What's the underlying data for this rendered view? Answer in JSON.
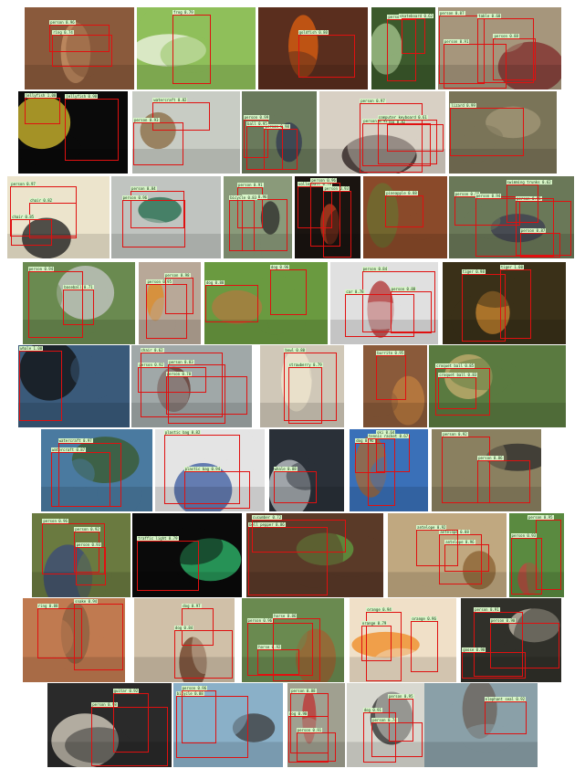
{
  "grid": {
    "rows": [
      {
        "cells": [
          {
            "bg": "#8a5a3c",
            "accent": "#c99568",
            "labels": [
              "person 0.96",
              "ring 0.74"
            ]
          },
          {
            "bg": "#8fbf5a",
            "accent": "#f2f6e8",
            "labels": [
              "frog 0.79"
            ]
          },
          {
            "bg": "#5a2e1e",
            "accent": "#e06010",
            "labels": [
              "goldfish 0.80"
            ]
          },
          {
            "bg": "#3c5a2c",
            "accent": "#a8c890",
            "labels": [
              "person 0.94",
              "skateboard 0.62"
            ]
          },
          {
            "bg": "#a6967c",
            "accent": "#7e2a2a",
            "labels": [
              "person 0.88",
              "person 0.87",
              "person 0.91",
              "table 0.68"
            ]
          }
        ]
      },
      {
        "cells": [
          {
            "bg": "#0a0a0a",
            "accent": "#d8c030",
            "labels": [
              "jellyfish 1.00",
              "jellyfish 0.98"
            ]
          },
          {
            "bg": "#c8ccc4",
            "accent": "#8a6a40",
            "labels": [
              "watercraft 0.82",
              "person 0.93"
            ]
          },
          {
            "bg": "#6a7a5c",
            "accent": "#303850",
            "labels": [
              "person 0.99",
              "person 0.98",
              "ball 0.95"
            ]
          },
          {
            "bg": "#d8d0c4",
            "accent": "#2a1c1c",
            "labels": [
              "person 0.97",
              "dog 0.82",
              "person 0.92",
              "computer keyboard 0.61"
            ]
          },
          {
            "bg": "#7a7458",
            "accent": "#a49878",
            "labels": [
              "lizard 0.99"
            ]
          }
        ]
      },
      {
        "cells": [
          {
            "bg": "#ece4cc",
            "accent": "#1c1c1c",
            "labels": [
              "person 0.97",
              "chair 0.82",
              "chair 0.85"
            ]
          },
          {
            "bg": "#c0c4c0",
            "accent": "#1e6a4a",
            "labels": [
              "person 0.84",
              "person 0.96"
            ]
          },
          {
            "bg": "#8a9a7a",
            "accent": "#2a2a2a",
            "labels": [
              "person 0.91",
              "person 0.96",
              "bicycle 0.83"
            ]
          },
          {
            "bg": "#1a1410",
            "accent": "#c04020",
            "labels": [
              "volleyball 0.79",
              "person 0.93",
              "person 0.96"
            ]
          },
          {
            "bg": "#8a4a2a",
            "accent": "#6a7030",
            "labels": [
              "pineapple 0.88"
            ]
          },
          {
            "bg": "#6a7858",
            "accent": "#3c3c50",
            "labels": [
              "person 0.89",
              "person 0.95",
              "person 0.87",
              "person 0.94",
              "swimming trunks 0.62"
            ]
          }
        ]
      },
      {
        "cells": [
          {
            "bg": "#6a8a50",
            "accent": "#c8c8c8",
            "labels": [
              "baseball 0.71",
              "person 0.94"
            ]
          },
          {
            "bg": "#b8a898",
            "accent": "#e08a20",
            "labels": [
              "person 0.95",
              "person 0.98"
            ]
          },
          {
            "bg": "#6a9a40",
            "accent": "#b07a40",
            "labels": [
              "dog 0.96",
              "dog 0.88"
            ]
          },
          {
            "bg": "#e0e0e0",
            "accent": "#b03030",
            "labels": [
              "person 0.84",
              "person 0.88",
              "car 0.78"
            ]
          },
          {
            "bg": "#3a3018",
            "accent": "#d08a30",
            "labels": [
              "tiger 1.00",
              "tiger 0.98"
            ]
          }
        ]
      },
      {
        "cells": [
          {
            "bg": "#3a5a7a",
            "accent": "#101010",
            "labels": [
              "whale 1.00"
            ]
          },
          {
            "bg": "#a0a8a8",
            "accent": "#603028",
            "labels": [
              "person 0.78",
              "person 0.92",
              "person 0.83",
              "chair 0.62"
            ]
          },
          {
            "bg": "#d0c8b8",
            "accent": "#f2e8d0",
            "labels": [
              "bowl 0.80",
              "strawberry 0.79"
            ]
          },
          {
            "bg": "#8a5a3a",
            "accent": "#c08040",
            "labels": [
              "burrito 0.95"
            ]
          },
          {
            "bg": "#5a7a40",
            "accent": "#c8b070",
            "labels": [
              "croquet ball 0.83",
              "croquet ball 0.85"
            ]
          }
        ]
      },
      {
        "cells": [
          {
            "bg": "#4a7aa0",
            "accent": "#3a5a2a",
            "labels": [
              "watercraft 0.87",
              "watercraft 0.97"
            ]
          },
          {
            "bg": "#e4e4e4",
            "accent": "#3a5aa0",
            "labels": [
              "plastic bag 0.82",
              "plastic bag 0.94"
            ]
          },
          {
            "bg": "#2a3038",
            "accent": "#c8ccd0",
            "labels": [
              "whale 0.88"
            ]
          },
          {
            "bg": "#3a70b8",
            "accent": "#a86830",
            "labels": [
              "dog 0.96",
              "ski 0.64",
              "tennis racket 0.67"
            ]
          },
          {
            "bg": "#8a8060",
            "accent": "#2a2a2a",
            "labels": [
              "person 0.92",
              "person 0.86"
            ]
          }
        ]
      },
      {
        "cells": [
          {
            "bg": "#6a7a40",
            "accent": "#3a4a7a",
            "labels": [
              "person 0.92",
              "person 0.96",
              "person 0.93"
            ]
          },
          {
            "bg": "#0a0a0a",
            "accent": "#30c070",
            "labels": [
              "traffic light 0.79"
            ]
          },
          {
            "bg": "#5a3a28",
            "accent": "#60a040",
            "labels": [
              "bell pepper 0.86",
              "cucumber 0.72"
            ]
          },
          {
            "bg": "#c0a880",
            "accent": "#8a6030",
            "labels": [
              "antelope 0.96",
              "antelope 0.88",
              "antelope 0.92"
            ]
          },
          {
            "bg": "#5a8a40",
            "accent": "#c84040",
            "labels": [
              "person 0.95",
              "person 0.93"
            ]
          }
        ]
      },
      {
        "cells": [
          {
            "bg": "#c07a50",
            "accent": "#8a6040",
            "labels": [
              "snake 0.94",
              "ring 0.88"
            ]
          },
          {
            "bg": "#d0c0a8",
            "accent": "#6a3a20",
            "labels": [
              "dog 0.97",
              "dog 0.84"
            ]
          },
          {
            "bg": "#6a8a50",
            "accent": "#a06030",
            "labels": [
              "person 0.96",
              "horse 0.92",
              "horse 0.86"
            ]
          },
          {
            "bg": "#f0e0c8",
            "accent": "#f08a20",
            "labels": [
              "orange 0.96",
              "orange 0.94",
              "orange 0.79"
            ]
          },
          {
            "bg": "#30302a",
            "accent": "#c8c0b0",
            "labels": [
              "person 0.91",
              "person 0.90",
              "goose 0.98"
            ]
          }
        ]
      },
      {
        "cells": [
          {
            "bg": "#2a2a2a",
            "accent": "#e0d8c8",
            "labels": [
              "person 0.98",
              "guitar 0.92"
            ]
          },
          {
            "bg": "#8ab0c8",
            "accent": "#3a3a3a",
            "labels": [
              "bicycle 0.88",
              "person 0.96"
            ]
          },
          {
            "bg": "#a0a090",
            "accent": "#c03030",
            "labels": [
              "person 0.91",
              "dog 0.90",
              "person 0.88"
            ]
          },
          {
            "bg": "#d8d8d0",
            "accent": "#2a2a2a",
            "labels": [
              "person 0.95",
              "person 0.74",
              "dog 0.91"
            ]
          },
          {
            "bg": "#8aa0a8",
            "accent": "#6a6058",
            "labels": [
              "elephant seal 0.92"
            ]
          }
        ]
      }
    ]
  }
}
